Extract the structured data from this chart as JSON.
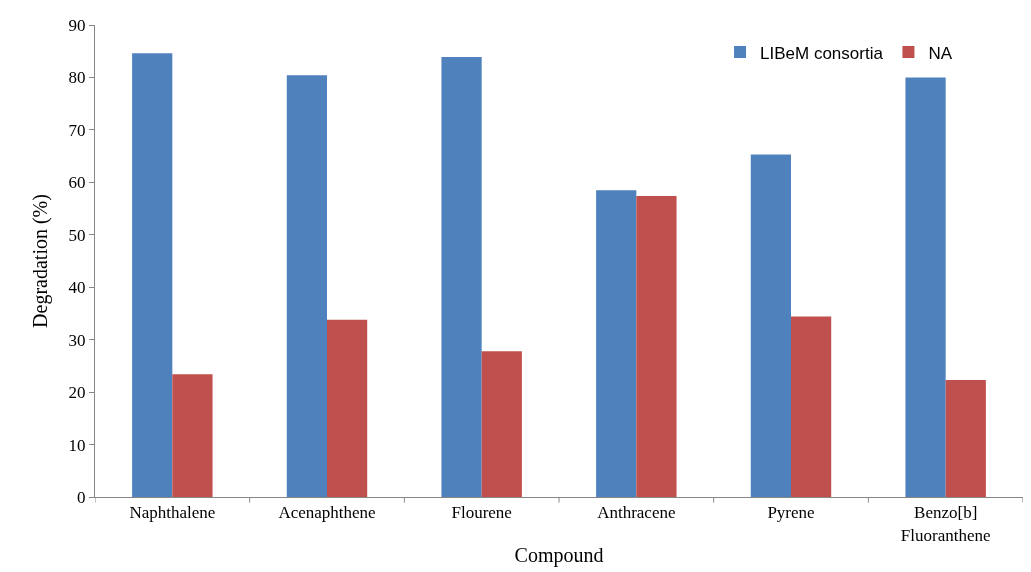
{
  "chart_data": {
    "type": "bar",
    "xlabel": "Compound",
    "ylabel": "Degradation (%)",
    "categories": [
      "Naphthalene",
      "Acenaphthene",
      "Flourene",
      "Anthracene",
      "Pyrene",
      "Benzo[b]\nFluoranthene"
    ],
    "series": [
      {
        "name": "LIBeM consortia",
        "color": "#4f81bd",
        "values": [
          84.6,
          80.4,
          83.9,
          58.5,
          65.3,
          80.0
        ]
      },
      {
        "name": "NA",
        "color": "#c0504d",
        "values": [
          23.4,
          33.8,
          27.8,
          57.4,
          34.4,
          22.3
        ]
      }
    ],
    "ylim": [
      0,
      90
    ],
    "yticks": [
      0,
      10,
      20,
      30,
      40,
      50,
      60,
      70,
      80,
      90
    ],
    "legend": "top right"
  }
}
